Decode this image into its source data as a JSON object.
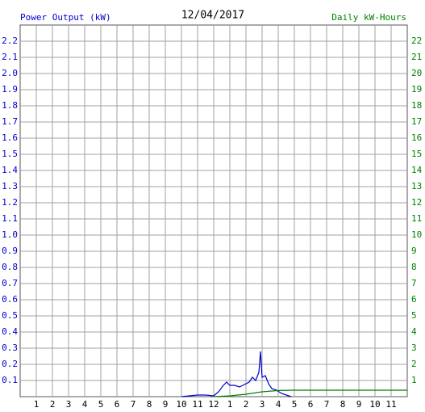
{
  "chart_data": {
    "type": "line",
    "title": "12/04/2017",
    "xlim": [
      0,
      24
    ],
    "xticks": [
      1,
      2,
      3,
      4,
      5,
      6,
      7,
      8,
      9,
      10,
      11,
      12,
      {
        "value": 13,
        "label": "1"
      },
      {
        "value": 14,
        "label": "2"
      },
      {
        "value": 15,
        "label": "3"
      },
      {
        "value": 16,
        "label": "4"
      },
      {
        "value": 17,
        "label": "5"
      },
      {
        "value": 18,
        "label": "6"
      },
      {
        "value": 19,
        "label": "7"
      },
      {
        "value": 20,
        "label": "8"
      },
      {
        "value": 21,
        "label": "9"
      },
      {
        "value": 22,
        "label": "10"
      },
      {
        "value": 23,
        "label": "11"
      }
    ],
    "ylim": [
      0,
      2.3
    ],
    "yticks": [
      0.1,
      0.2,
      0.3,
      0.4,
      0.5,
      0.6,
      0.7,
      0.8,
      0.9,
      {
        "value": 1,
        "label": "1.0"
      },
      1.1,
      1.2,
      1.3,
      1.4,
      1.5,
      1.6,
      1.7,
      1.8,
      1.9,
      {
        "value": 2,
        "label": "2.0"
      },
      2.1,
      2.2
    ],
    "y2lim": [
      0,
      23
    ],
    "y2ticks": [
      1,
      2,
      3,
      4,
      5,
      6,
      7,
      8,
      9,
      10,
      11,
      12,
      13,
      14,
      15,
      16,
      17,
      18,
      19,
      20,
      21,
      22
    ],
    "grid": true,
    "series": [
      {
        "name": "Power Output (kW)",
        "color": "#0000cc",
        "x": [
          10,
          10.5,
          11,
          11.5,
          12,
          12.3,
          12.6,
          12.8,
          13,
          13.3,
          13.6,
          14,
          14.2,
          14.4,
          14.6,
          14.8,
          14.9,
          15,
          15.2,
          15.4,
          15.6,
          15.9,
          16.2,
          16.5,
          16.8
        ],
        "values": [
          0,
          0.005,
          0.01,
          0.01,
          0.005,
          0.03,
          0.07,
          0.09,
          0.07,
          0.07,
          0.06,
          0.08,
          0.09,
          0.12,
          0.1,
          0.15,
          0.28,
          0.12,
          0.13,
          0.08,
          0.05,
          0.04,
          0.02,
          0.01,
          0
        ]
      },
      {
        "name": "Daily kW-Hours",
        "color": "#008000",
        "axis": "y2",
        "x": [
          12,
          13,
          14,
          15,
          16,
          17,
          24
        ],
        "values": [
          0,
          0.05,
          0.15,
          0.3,
          0.38,
          0.4,
          0.4
        ]
      }
    ]
  }
}
